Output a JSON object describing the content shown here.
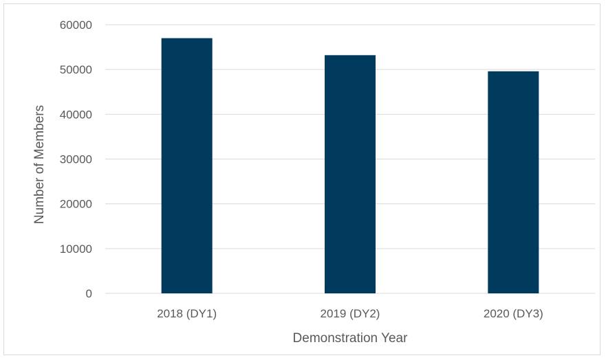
{
  "chart_data": {
    "type": "bar",
    "categories": [
      "2018 (DY1)",
      "2019 (DY2)",
      "2020 (DY3)"
    ],
    "values": [
      57000,
      53200,
      49600
    ],
    "title": "",
    "xlabel": "Demonstration Year",
    "ylabel": "Number of Members",
    "ylim": [
      0,
      60000
    ],
    "yticks": [
      0,
      10000,
      20000,
      30000,
      40000,
      50000,
      60000
    ],
    "grid": true,
    "legend": "none",
    "bar_color": "#003a5c",
    "grid_color": "#d9d9d9",
    "text_color": "#595959"
  }
}
